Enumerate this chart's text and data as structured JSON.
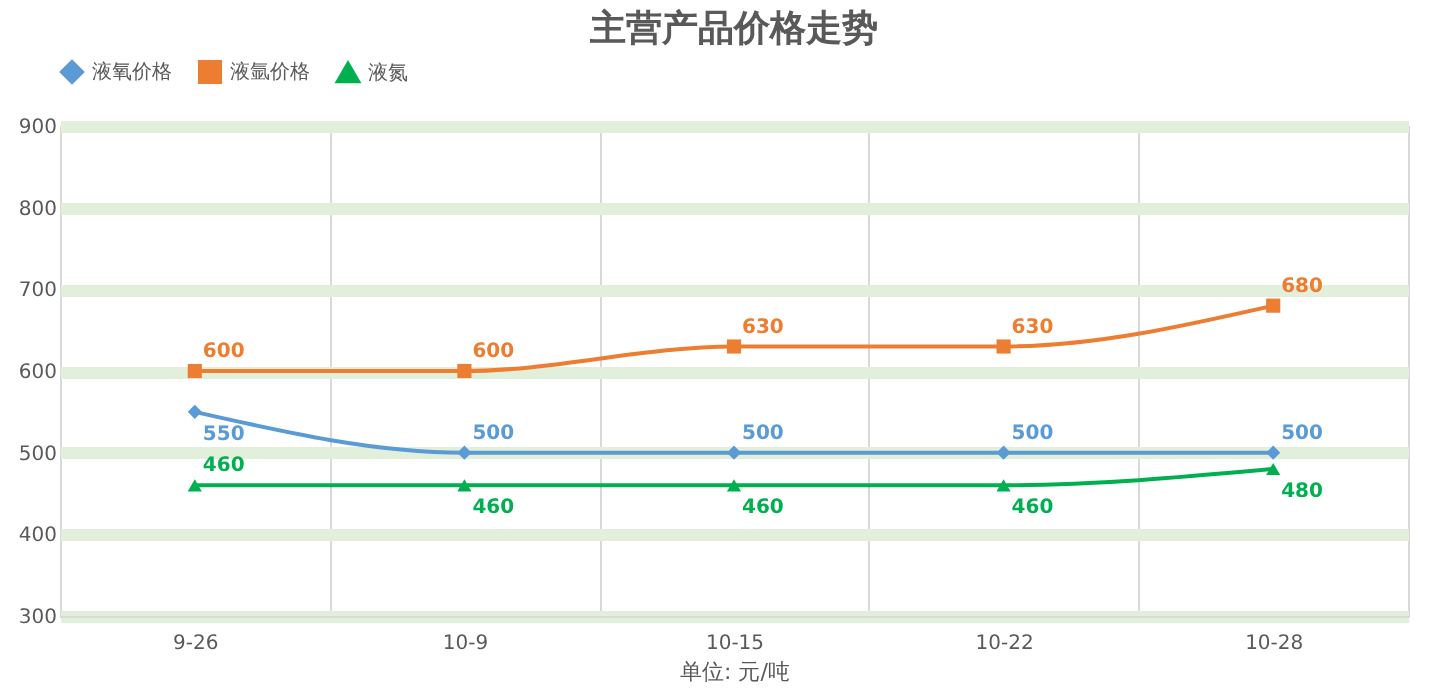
{
  "chart_data": {
    "type": "line",
    "title": "主营产品价格走势",
    "xlabel": "单位: 元/吨",
    "categories": [
      "9-26",
      "10-9",
      "10-15",
      "10-22",
      "10-28"
    ],
    "series": [
      {
        "name": "液氧价格",
        "color": "#5b9bd5",
        "marker": "diamond",
        "values": [
          550,
          500,
          500,
          500,
          500
        ]
      },
      {
        "name": "液氩价格",
        "color": "#ed7d31",
        "marker": "square",
        "values": [
          600,
          600,
          630,
          630,
          680
        ]
      },
      {
        "name": "液氮",
        "color": "#00b050",
        "marker": "triangle",
        "values": [
          460,
          460,
          460,
          460,
          480
        ]
      }
    ],
    "ylim": [
      300,
      900
    ],
    "yticks": [
      300,
      400,
      500,
      600,
      700,
      800,
      900
    ],
    "grid": true,
    "legend": "top",
    "data_labels": true
  }
}
